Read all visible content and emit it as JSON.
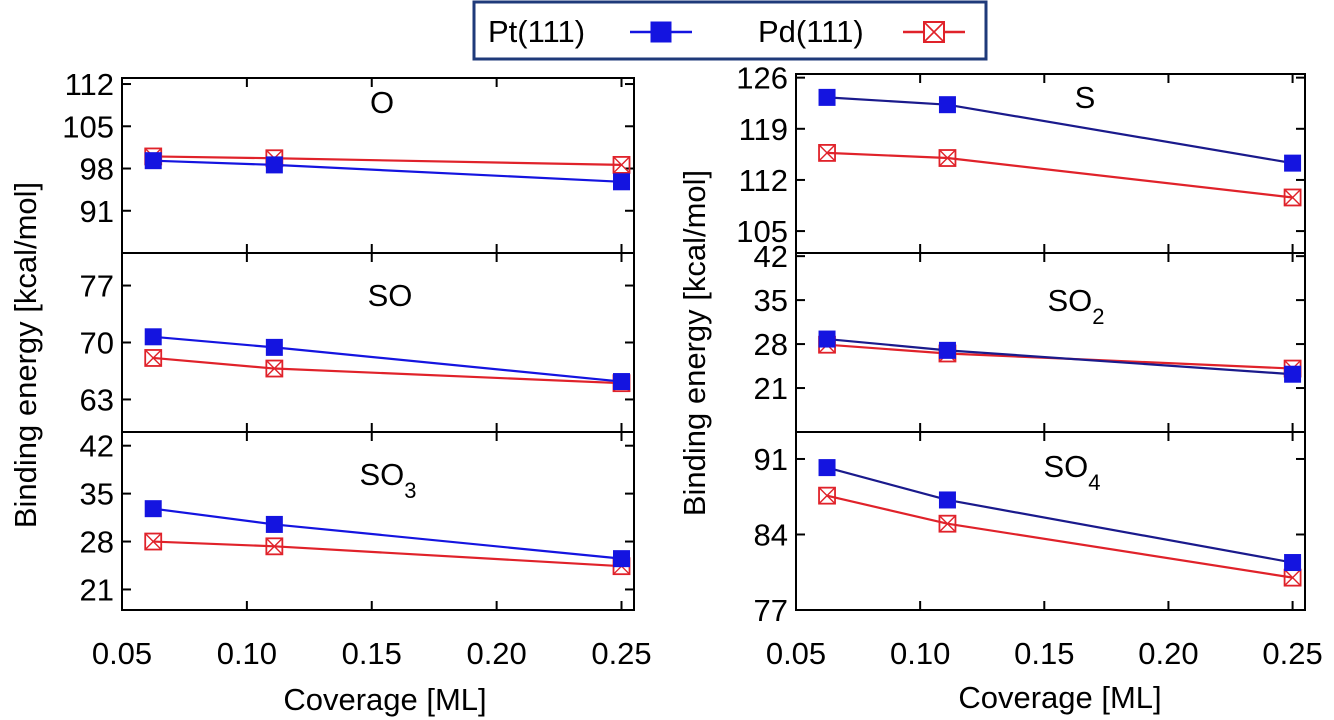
{
  "legend": {
    "placement": "top-center",
    "entries": [
      {
        "label": "Pt(111)",
        "color": "#1414e0",
        "line_color": "#1a1a8c",
        "marker": "filled-square"
      },
      {
        "label": "Pd(111)",
        "color": "#e0222a",
        "marker": "open-square-x"
      }
    ]
  },
  "x_axis_label": "Coverage [ML]",
  "y_axis_label": "Binding energy [kcal/mol]",
  "x_tick_labels": [
    "0.05",
    "0.10",
    "0.15",
    "0.20",
    "0.25"
  ],
  "chart_data": [
    {
      "type": "line",
      "title": "O",
      "title_sub": "",
      "x": [
        0.0625,
        0.111,
        0.25
      ],
      "xlim": [
        0.05,
        0.255
      ],
      "ylim": [
        84,
        113
      ],
      "yticks": [
        91,
        98,
        105,
        112
      ],
      "series": [
        {
          "name": "Pt(111)",
          "values": [
            99.3,
            98.6,
            95.8
          ]
        },
        {
          "name": "Pd(111)",
          "values": [
            100.0,
            99.7,
            98.6
          ]
        }
      ]
    },
    {
      "type": "line",
      "title": "SO",
      "title_sub": "",
      "x": [
        0.0625,
        0.111,
        0.25
      ],
      "xlim": [
        0.05,
        0.255
      ],
      "ylim": [
        59,
        81
      ],
      "yticks": [
        63,
        70,
        77
      ],
      "series": [
        {
          "name": "Pt(111)",
          "values": [
            70.7,
            69.4,
            65.2
          ]
        },
        {
          "name": "Pd(111)",
          "values": [
            68.1,
            66.8,
            65.0
          ]
        }
      ]
    },
    {
      "type": "line",
      "title": "SO",
      "title_sub": "3",
      "x": [
        0.0625,
        0.111,
        0.25
      ],
      "xlim": [
        0.05,
        0.255
      ],
      "ylim": [
        18,
        44
      ],
      "yticks": [
        21,
        28,
        35,
        42
      ],
      "series": [
        {
          "name": "Pt(111)",
          "values": [
            32.8,
            30.5,
            25.5
          ]
        },
        {
          "name": "Pd(111)",
          "values": [
            28.0,
            27.3,
            24.4
          ]
        }
      ]
    },
    {
      "type": "line",
      "title": "S",
      "title_sub": "",
      "x": [
        0.0625,
        0.111,
        0.25
      ],
      "xlim": [
        0.05,
        0.255
      ],
      "ylim": [
        102,
        126.5
      ],
      "yticks": [
        105,
        112,
        119,
        126
      ],
      "series": [
        {
          "name": "Pt(111)",
          "values": [
            123.3,
            122.3,
            114.3
          ]
        },
        {
          "name": "Pd(111)",
          "values": [
            115.7,
            115.0,
            109.6
          ]
        }
      ]
    },
    {
      "type": "line",
      "title": "SO",
      "title_sub": "2",
      "x": [
        0.0625,
        0.111,
        0.25
      ],
      "xlim": [
        0.05,
        0.255
      ],
      "ylim": [
        14,
        42.5
      ],
      "yticks": [
        21,
        28,
        35,
        42
      ],
      "series": [
        {
          "name": "Pt(111)",
          "values": [
            28.8,
            27.0,
            23.2
          ]
        },
        {
          "name": "Pd(111)",
          "values": [
            27.9,
            26.5,
            24.1
          ]
        }
      ]
    },
    {
      "type": "line",
      "title": "SO",
      "title_sub": "4",
      "x": [
        0.0625,
        0.111,
        0.25
      ],
      "xlim": [
        0.05,
        0.255
      ],
      "ylim": [
        77,
        93.5
      ],
      "yticks": [
        77,
        84,
        91
      ],
      "series": [
        {
          "name": "Pt(111)",
          "values": [
            90.2,
            87.2,
            81.4
          ]
        },
        {
          "name": "Pd(111)",
          "values": [
            87.6,
            85.0,
            80.0
          ]
        }
      ]
    }
  ]
}
